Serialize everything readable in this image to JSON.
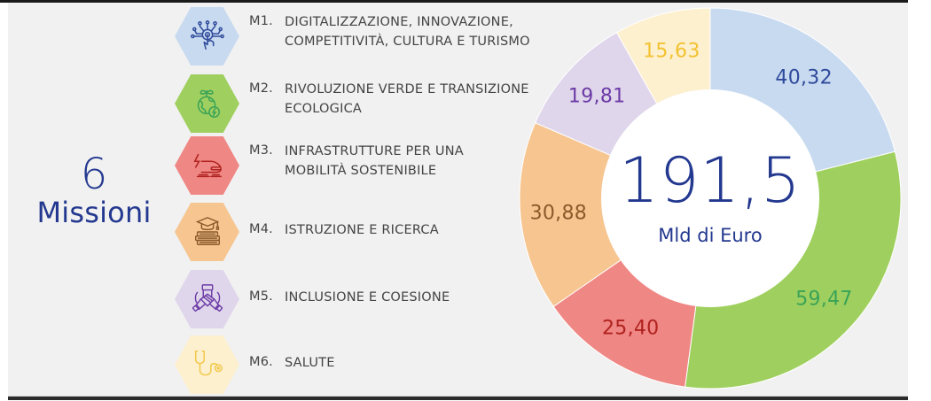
{
  "title": {
    "number": "6",
    "word": "Missioni"
  },
  "missions": [
    {
      "code": "M1.",
      "text": "DIGITALIZZAZIONE, INNOVAZIONE,\nCOMPETITIVITÀ, CULTURA E TURISMO",
      "icon": "digital-touch-icon",
      "hex_color": "#c8daf0",
      "icon_color": "#2f4a9b"
    },
    {
      "code": "M2.",
      "text": "RIVOLUZIONE VERDE E TRANSIZIONE\nECOLOGICA",
      "icon": "green-earth-energy-icon",
      "hex_color": "#9fcf5f",
      "icon_color": "#3aa357"
    },
    {
      "code": "M3.",
      "text": "INFRASTRUTTURE PER UNA\nMOBILITÀ SOSTENIBILE",
      "icon": "electric-train-icon",
      "hex_color": "#ef8784",
      "icon_color": "#b0221f"
    },
    {
      "code": "M4.",
      "text": "ISTRUZIONE E RICERCA",
      "icon": "graduation-books-icon",
      "hex_color": "#f6c590",
      "icon_color": "#8a5a2a"
    },
    {
      "code": "M5.",
      "text": "INCLUSIONE E COESIONE",
      "icon": "joined-hands-icon",
      "hex_color": "#e0d6eb",
      "icon_color": "#6b3aa6"
    },
    {
      "code": "M6.",
      "text": "SALUTE",
      "icon": "stethoscope-icon",
      "hex_color": "#fdf0cf",
      "icon_color": "#f2c94c"
    }
  ],
  "center": {
    "total": "191,5",
    "unit": "Mld di Euro"
  },
  "chart_data": {
    "type": "pie",
    "subtype": "donut",
    "title": "6 Missioni",
    "center_label": "191,5 Mld di Euro",
    "categories": [
      "M1",
      "M2",
      "M3",
      "M4",
      "M5",
      "M6"
    ],
    "values": [
      40.32,
      59.47,
      25.4,
      30.88,
      19.81,
      15.63
    ],
    "labels": [
      "40,32",
      "59,47",
      "25,40",
      "30,88",
      "19,81",
      "15,63"
    ],
    "colors": [
      "#c8daf0",
      "#9fd05f",
      "#ef8784",
      "#f6c590",
      "#e0d6eb",
      "#fdf0cf"
    ],
    "label_colors": [
      "#2f4a9b",
      "#3aa357",
      "#b0221f",
      "#8a5a2a",
      "#6b3aa6",
      "#f2c230"
    ],
    "start_angle": "12 o'clock",
    "direction": "clockwise",
    "unit": "Mld di Euro",
    "legend_position": "left"
  }
}
